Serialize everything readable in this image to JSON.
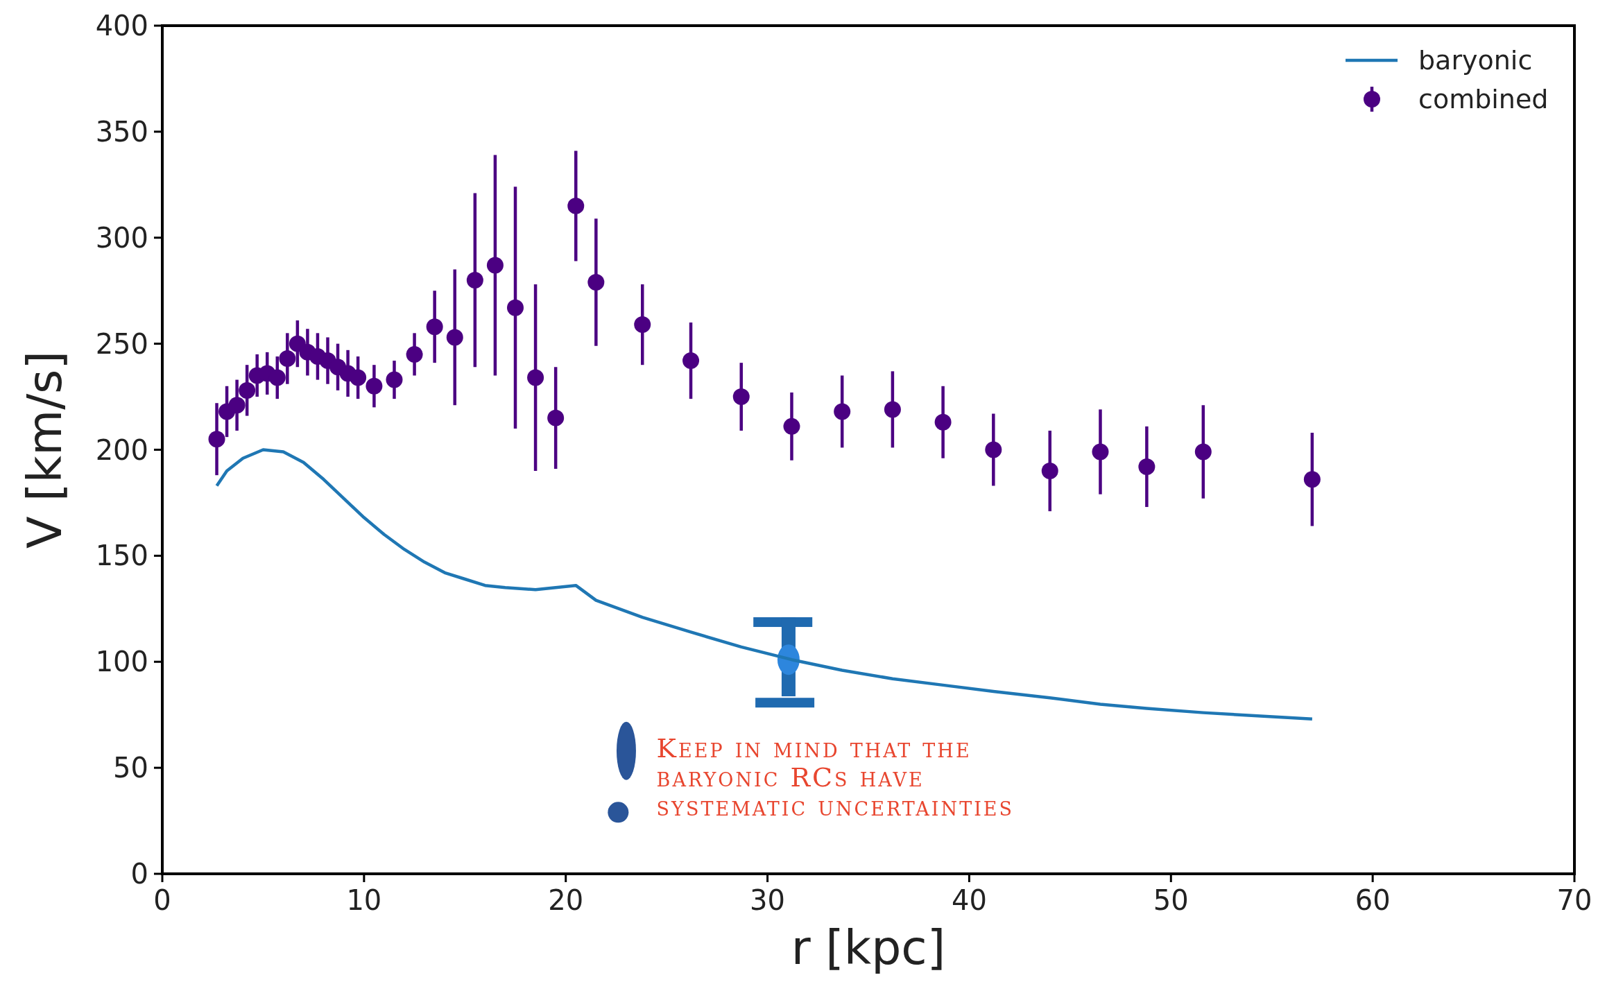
{
  "chart_data": {
    "type": "scatter",
    "xlabel": "r [kpc]",
    "ylabel": "V [km/s]",
    "xlim": [
      0,
      70
    ],
    "ylim": [
      0,
      400
    ],
    "xticks": [
      0,
      10,
      20,
      30,
      40,
      50,
      60,
      70
    ],
    "yticks": [
      0,
      50,
      100,
      150,
      200,
      250,
      300,
      350,
      400
    ],
    "grid": false,
    "legend": "top right",
    "annotations": [
      "Keep in mind that the baryonic RCs have systematic uncertainties"
    ],
    "series": [
      {
        "name": "baryonic",
        "type": "line",
        "color": "#1f77b4",
        "marker": "none",
        "x": [
          2.7,
          3.2,
          4,
          5,
          6,
          7,
          8,
          9,
          10,
          11,
          12,
          13,
          14,
          15,
          16,
          17,
          18.5,
          20.5,
          21.5,
          23.8,
          26.2,
          28.7,
          31.2,
          33.7,
          36.2,
          38.7,
          41.2,
          44,
          46.5,
          48.8,
          51.6,
          57
        ],
        "values": [
          183,
          190,
          196,
          200,
          199,
          194,
          186,
          177,
          168,
          160,
          153,
          147,
          142,
          139,
          136,
          135,
          134,
          136,
          129,
          121,
          114,
          107,
          101,
          96,
          92,
          89,
          86,
          83,
          80,
          78,
          76,
          73
        ]
      },
      {
        "name": "combined",
        "color": "#4b0082",
        "marker": "circle",
        "x": [
          2.7,
          3.2,
          3.7,
          4.2,
          4.7,
          5.2,
          5.7,
          6.2,
          6.7,
          7.2,
          7.7,
          8.2,
          8.7,
          9.2,
          9.7,
          10.5,
          11.5,
          12.5,
          13.5,
          14.5,
          15.5,
          16.5,
          17.5,
          18.5,
          19.5,
          20.5,
          21.5,
          23.8,
          26.2,
          28.7,
          31.2,
          33.7,
          36.2,
          38.7,
          41.2,
          44,
          46.5,
          48.8,
          51.6,
          57
        ],
        "values": [
          205,
          218,
          221,
          228,
          235,
          236,
          234,
          243,
          250,
          246,
          244,
          242,
          239,
          236,
          234,
          230,
          233,
          245,
          258,
          253,
          280,
          287,
          267,
          234,
          215,
          315,
          279,
          259,
          242,
          225,
          211,
          218,
          219,
          213,
          200,
          190,
          199,
          192,
          199,
          186
        ],
        "errors": [
          17,
          12,
          12,
          12,
          10,
          10,
          10,
          12,
          11,
          11,
          11,
          11,
          11,
          11,
          10,
          10,
          9,
          10,
          17,
          32,
          41,
          52,
          57,
          44,
          24,
          26,
          30,
          19,
          18,
          16,
          16,
          17,
          18,
          17,
          17,
          19,
          20,
          19,
          22,
          22
        ]
      }
    ]
  }
}
